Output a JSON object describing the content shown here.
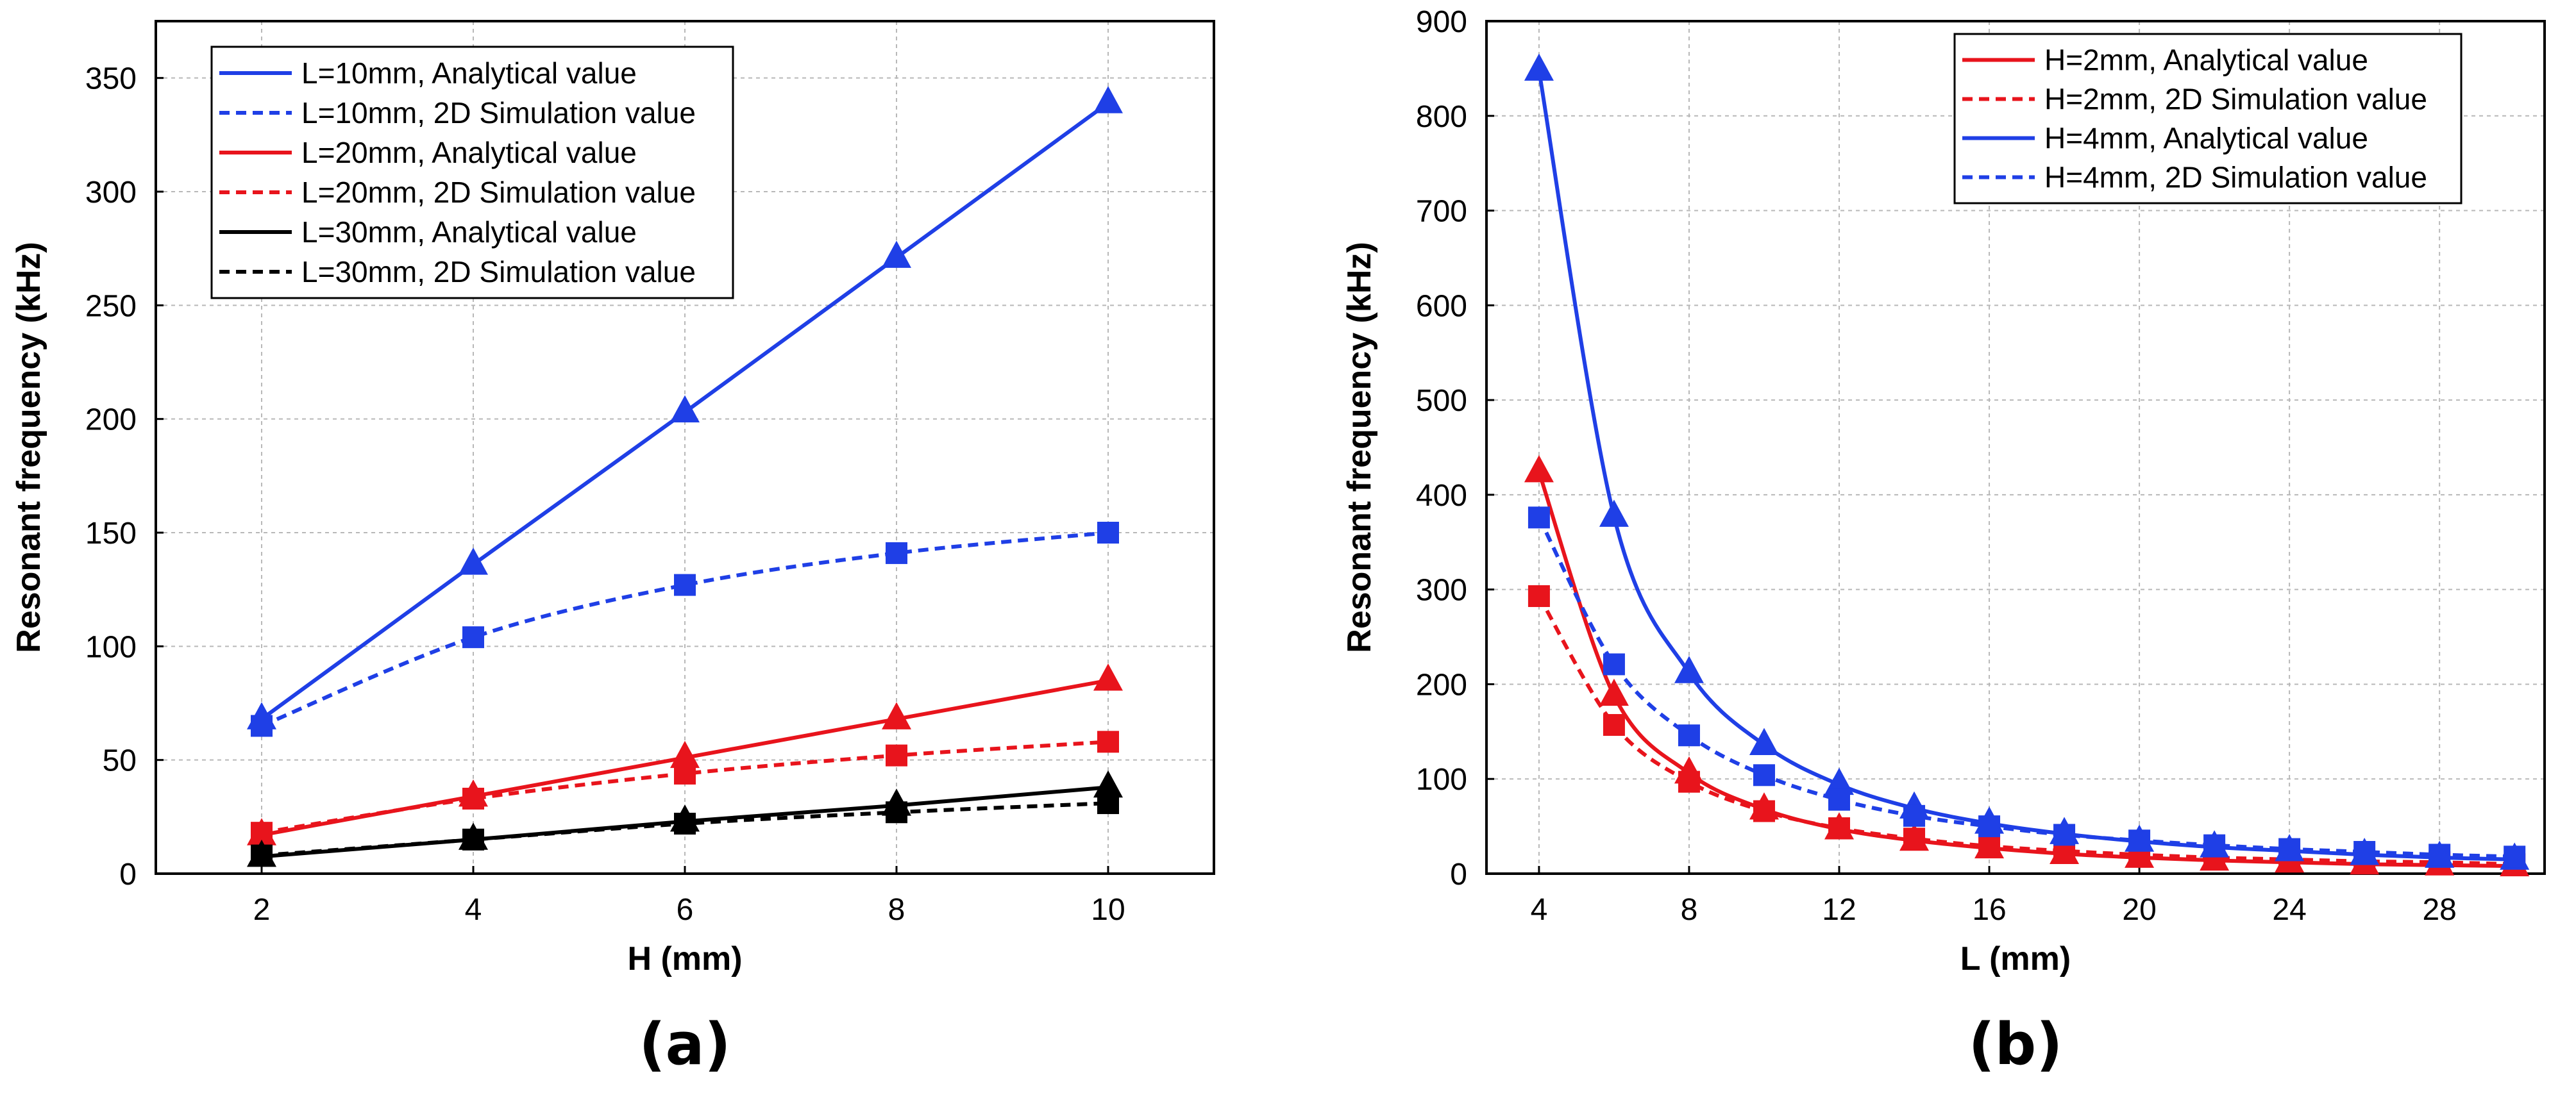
{
  "chart_data": [
    {
      "type": "line",
      "panel_label": "(a)",
      "xlabel": "H (mm)",
      "ylabel": "Resonant frequency (kHz)",
      "xlim": [
        1,
        11
      ],
      "ylim": [
        0,
        375
      ],
      "xticks": [
        2,
        4,
        6,
        8,
        10
      ],
      "yticks": [
        0,
        50,
        100,
        150,
        200,
        250,
        300,
        350
      ],
      "grid": true,
      "legend_position": "top-left",
      "x": [
        2,
        4,
        6,
        8,
        10
      ],
      "series": [
        {
          "name": "L=10mm, Analytical value",
          "color": "#1f3fe6",
          "dash": "solid",
          "marker": "triangle",
          "values": [
            68,
            136,
            203,
            271,
            339
          ]
        },
        {
          "name": "L=10mm, 2D Simulation value",
          "color": "#1f3fe6",
          "dash": "dashed",
          "marker": "square",
          "values": [
            65,
            104,
            127,
            141,
            150
          ]
        },
        {
          "name": "L=20mm, Analytical value",
          "color": "#e8141c",
          "dash": "solid",
          "marker": "triangle",
          "values": [
            17,
            34,
            51,
            68,
            85
          ]
        },
        {
          "name": "L=20mm, 2D Simulation value",
          "color": "#e8141c",
          "dash": "dashed",
          "marker": "square",
          "values": [
            18,
            33,
            44,
            52,
            58
          ]
        },
        {
          "name": "L=30mm, Analytical value",
          "color": "#000000",
          "dash": "solid",
          "marker": "triangle",
          "values": [
            7.5,
            15,
            23,
            30,
            38
          ]
        },
        {
          "name": "L=30mm, 2D Simulation value",
          "color": "#000000",
          "dash": "dashed",
          "marker": "square",
          "values": [
            8,
            15,
            22,
            27,
            31
          ]
        }
      ]
    },
    {
      "type": "line",
      "panel_label": "(b)",
      "xlabel": "L (mm)",
      "ylabel": "Resonant frequency (kHz)",
      "xlim": [
        2.6,
        30.8
      ],
      "ylim": [
        0,
        900
      ],
      "xticks": [
        4,
        8,
        12,
        16,
        20,
        24,
        28
      ],
      "yticks": [
        0,
        100,
        200,
        300,
        400,
        500,
        600,
        700,
        800,
        900
      ],
      "grid": true,
      "legend_position": "top-right",
      "x": [
        4,
        6,
        8,
        10,
        12,
        14,
        16,
        18,
        20,
        22,
        24,
        26,
        28,
        30
      ],
      "series": [
        {
          "name": "H=2mm, Analytical value",
          "color": "#e8141c",
          "dash": "solid",
          "marker": "triangle",
          "values": [
            424,
            188,
            106,
            68,
            47,
            35,
            27,
            21,
            17,
            14,
            12,
            10,
            9,
            8
          ]
        },
        {
          "name": "H=2mm, 2D Simulation value",
          "color": "#e8141c",
          "dash": "dashed",
          "marker": "square",
          "values": [
            293,
            157,
            97,
            66,
            48,
            37,
            29,
            24,
            20,
            17,
            15,
            13,
            12,
            10
          ]
        },
        {
          "name": "H=4mm, Analytical value",
          "color": "#1f3fe6",
          "dash": "solid",
          "marker": "triangle",
          "values": [
            848,
            377,
            212,
            136,
            94,
            69,
            53,
            42,
            34,
            28,
            24,
            20,
            17,
            15
          ]
        },
        {
          "name": "H=4mm, 2D Simulation value",
          "color": "#1f3fe6",
          "dash": "dashed",
          "marker": "square",
          "values": [
            376,
            221,
            146,
            104,
            78,
            61,
            50,
            41,
            35,
            30,
            26,
            23,
            20,
            18
          ]
        }
      ]
    }
  ]
}
